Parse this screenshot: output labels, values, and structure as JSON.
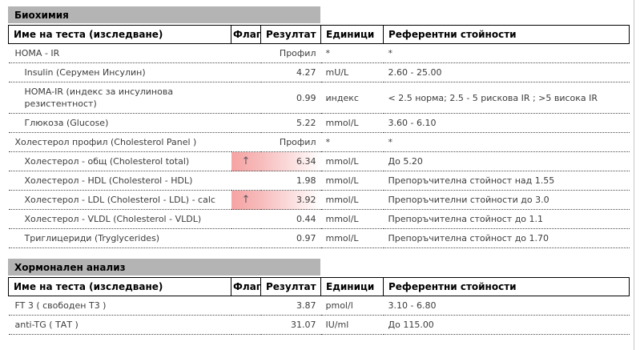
{
  "colors": {
    "section_bar_bg": "#b4b4b4",
    "flag_highlight_pink": "#f6a2a2",
    "body_text": "#3c3c3c",
    "header_text": "#000000"
  },
  "icons": {
    "flag_up": "↑"
  },
  "columns": {
    "name": "Име на теста (изследване)",
    "flag": "Флаг",
    "result": "Резултат",
    "units": "Единици",
    "reference": "Референтни стойности"
  },
  "sections": [
    {
      "title": "Биохимия",
      "rows": [
        {
          "name": "HOMA - IR",
          "flag": "",
          "result": "Профил",
          "units": "*",
          "reference": "*"
        },
        {
          "name": "Insulin (Серумен Инсулин)",
          "flag": "",
          "result": "4.27",
          "units": "mU/L",
          "reference": "2.60 - 25.00"
        },
        {
          "name": "HOMA-IR (индекс за инсулинова резистентност)",
          "flag": "",
          "result": "0.99",
          "units": "индекс",
          "reference": "< 2.5 норма; 2.5 - 5 рискова IR ; >5 висока IR"
        },
        {
          "name": "Глюкоза (Glucose)",
          "flag": "",
          "result": "5.22",
          "units": "mmol/L",
          "reference": "3.60 - 6.10"
        },
        {
          "name": "Холестерол профил (Cholesterol Panel )",
          "flag": "",
          "result": "Профил",
          "units": "*",
          "reference": "*"
        },
        {
          "name": "Холестерол - общ (Cholesterol total)",
          "flag": "↑",
          "result": "6.34",
          "units": "mmol/L",
          "reference": "До 5.20"
        },
        {
          "name": "Холестерол - HDL (Cholesterol - HDL)",
          "flag": "",
          "result": "1.98",
          "units": "mmol/L",
          "reference": "Препоръчителна стойност над 1.55"
        },
        {
          "name": "Холестерол - LDL (Cholesterol - LDL) - calc",
          "flag": "↑",
          "result": "3.92",
          "units": "mmol/L",
          "reference": "Препоръчителни стойности до 3.0"
        },
        {
          "name": "Холестерол - VLDL (Cholesterol - VLDL)",
          "flag": "",
          "result": "0.44",
          "units": "mmol/L",
          "reference": "Препоръчителна стойност до 1.1"
        },
        {
          "name": "Триглицериди (Tryglycerides)",
          "flag": "",
          "result": "0.97",
          "units": "mmol/L",
          "reference": "Препоръчителна стойност до 1.70"
        }
      ]
    },
    {
      "title": "Хормонален анализ",
      "rows": [
        {
          "name": "FT 3 ( свободен Т3 )",
          "flag": "",
          "result": "3.87",
          "units": "pmol/l",
          "reference": "3.10 - 6.80"
        },
        {
          "name": "anti-TG ( ТАТ )",
          "flag": "",
          "result": "31.07",
          "units": "IU/ml",
          "reference": "До 115.00"
        }
      ]
    }
  ]
}
